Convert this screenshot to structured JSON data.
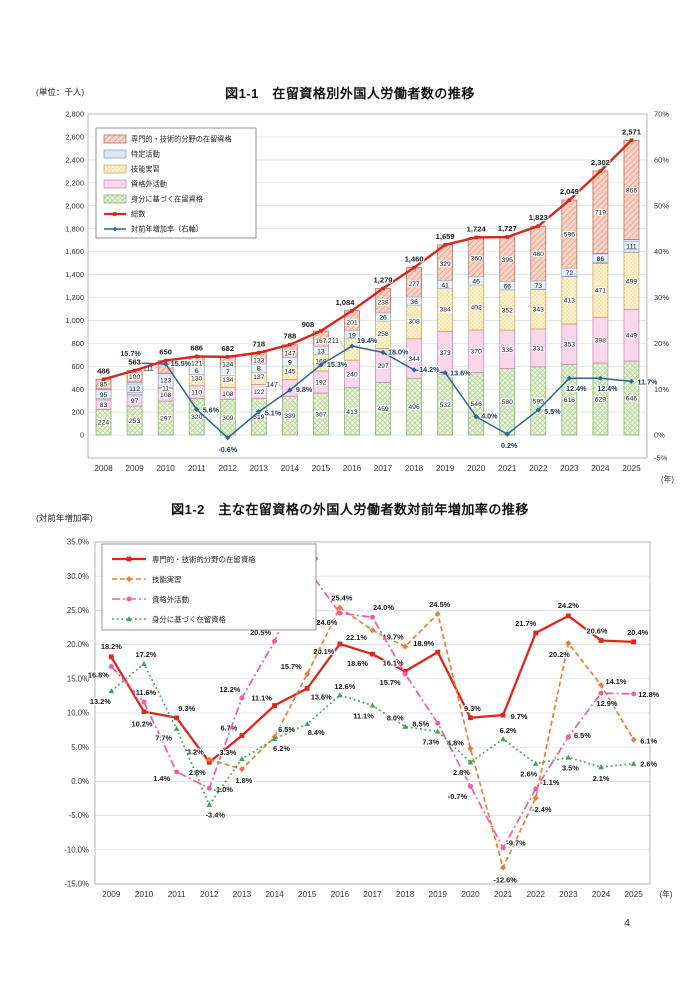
{
  "page_number": "4",
  "chart_data": [
    {
      "type": "bar",
      "id": "fig1",
      "title": "図1-1　在留資格別外国人労働者数の推移",
      "unit_label": "(単位：千人)",
      "x_axis_suffix": "(年)",
      "years": [
        "2008",
        "2009",
        "2010",
        "2011",
        "2012",
        "2013",
        "2014",
        "2015",
        "2016",
        "2017",
        "2018",
        "2019",
        "2020",
        "2021",
        "2022",
        "2023",
        "2024",
        "2025"
      ],
      "left_axis": {
        "min": -200,
        "max": 2800,
        "step": 200,
        "tick_labels": [
          "0",
          "200",
          "400",
          "600",
          "800",
          "1,000",
          "1,200",
          "1,400",
          "1,600",
          "1,800",
          "2,000",
          "2,200",
          "2,400",
          "2,600",
          "2,800"
        ]
      },
      "right_axis": {
        "min": -5,
        "max": 70,
        "tick_labels": [
          "70%",
          "60%",
          "50%",
          "40%",
          "30%",
          "20%",
          "10%",
          "0%",
          "-5%"
        ],
        "tick_values": [
          70,
          60,
          50,
          40,
          30,
          20,
          10,
          0,
          -5
        ]
      },
      "stack_note": "series listed top-to-bottom as stacked",
      "series": [
        {
          "name": "専門的・技術的分野の在留資格",
          "key": "senmon",
          "values": [
            85,
            100,
            111,
            121,
            124,
            133,
            147,
            167,
            201,
            238,
            277,
            329,
            360,
            395,
            480,
            596,
            719,
            866
          ]
        },
        {
          "name": "特定活動",
          "key": "tokutei",
          "values": [
            95,
            112,
            123,
            6,
            7,
            8,
            9,
            13,
            19,
            26,
            36,
            41,
            46,
            66,
            73,
            72,
            86,
            111
          ]
        },
        {
          "name": "技能実習",
          "key": "ginou",
          "values": [
            null,
            null,
            11,
            130,
            134,
            137,
            145,
            168,
            211,
            258,
            308,
            384,
            402,
            352,
            343,
            413,
            471,
            499
          ]
        },
        {
          "name": "資格外活動",
          "key": "shikakugai",
          "values": [
            83,
            97,
            108,
            110,
            108,
            122,
            147,
            192,
            240,
            297,
            344,
            373,
            370,
            335,
            331,
            353,
            398,
            449
          ]
        },
        {
          "name": "身分に基づく在留資格",
          "key": "mibun",
          "values": [
            224,
            253,
            297,
            320,
            309,
            319,
            339,
            367,
            413,
            459,
            496,
            532,
            546,
            580,
            595,
            616,
            629,
            646
          ]
        }
      ],
      "total_series": {
        "name": "総数",
        "values": [
          486,
          563,
          650,
          686,
          682,
          718,
          788,
          908,
          1084,
          1279,
          1460,
          1659,
          1724,
          1727,
          1823,
          2049,
          2302,
          2571
        ],
        "labels": [
          "486",
          "563",
          "650",
          "686",
          "682",
          "718",
          "788",
          "908",
          "1,084",
          "1,279",
          "1,460",
          "1,659",
          "1,724",
          "1,727",
          "1,823",
          "2,049",
          "2,302",
          "2,571"
        ]
      },
      "rate_series": {
        "name": "対前年増加率（右軸）",
        "values": [
          null,
          15.7,
          15.5,
          5.6,
          -0.6,
          5.1,
          9.8,
          15.3,
          19.4,
          18.0,
          14.2,
          13.6,
          4.0,
          0.2,
          5.5,
          12.4,
          12.4,
          11.7
        ],
        "labels": [
          "",
          "15.7%",
          "15.5%",
          "5.6%",
          "-0.6%",
          "5.1%",
          "9.8%",
          "15.3%",
          "19.4%",
          "18.0%",
          "14.2%",
          "13.6%",
          "4.0%",
          "0.2%",
          "5.5%",
          "12.4%",
          "12.4%",
          "11.7%"
        ]
      },
      "legend": [
        {
          "label": "専門的・技術的分野の在留資格",
          "swatch": "senmon"
        },
        {
          "label": "特定活動",
          "swatch": "tokutei"
        },
        {
          "label": "技能実習",
          "swatch": "ginou"
        },
        {
          "label": "資格外活動",
          "swatch": "shikakugai"
        },
        {
          "label": "身分に基づく在留資格",
          "swatch": "mibun"
        },
        {
          "label": "総数",
          "swatch": "line-total"
        },
        {
          "label": "対前年増加率（右軸）",
          "swatch": "line-rate"
        }
      ],
      "colors": {
        "total_line": "#d9261c",
        "rate_line": "#2e6496",
        "label_text": "#222222",
        "senmon_fill": "#f8d3c5",
        "senmon_hatch": "#de8e7a",
        "senmon_border": "#b85c50",
        "tokutei_fill": "#dce6f2",
        "tokutei_border": "#7f9db9",
        "ginou_fill": "#fdf2cd",
        "ginou_dot": "#d8b44c",
        "ginou_border": "#c3a04a",
        "shikakugai_fill": "#f9d7eb",
        "shikakugai_border": "#cf7fb4",
        "mibun_fill": "#edf5e1",
        "mibun_hatch": "#b6d79a",
        "mibun_border": "#7ca861"
      }
    },
    {
      "type": "line",
      "id": "fig2",
      "title": "図1-2　主な在留資格の外国人労働者数対前年増加率の推移",
      "axis_label": "(対前年増加率)",
      "x_axis_suffix": "(年)",
      "years": [
        "2009",
        "2010",
        "2011",
        "2012",
        "2013",
        "2014",
        "2015",
        "2016",
        "2017",
        "2018",
        "2019",
        "2020",
        "2021",
        "2022",
        "2023",
        "2024",
        "2025"
      ],
      "ylim": [
        -15,
        35
      ],
      "ystep": 5,
      "y_tick_labels": [
        "35.0%",
        "30.0%",
        "25.0%",
        "20.0%",
        "15.0%",
        "10.0%",
        "5.0%",
        "0.0%",
        "-5.0%",
        "-10.0%",
        "-15.0%"
      ],
      "series": [
        {
          "name": "専門的・技術的分野の在留資格",
          "color": "#e0261c",
          "style": "solid",
          "marker": "square",
          "values": [
            18.2,
            10.2,
            9.3,
            2.8,
            6.7,
            11.1,
            13.6,
            20.1,
            18.6,
            16.1,
            18.9,
            9.3,
            9.7,
            21.7,
            24.2,
            20.6,
            20.4
          ],
          "labels": [
            "18.2%",
            "10.2%",
            "9.3%",
            "2.8%",
            "6.7%",
            "11.1%",
            "13.6%",
            "20.1%",
            "18.6%",
            "16.1%",
            "18.9%",
            "9.3%",
            "9.7%",
            "21.7%",
            "24.2%",
            "20.6%",
            "20.4%"
          ]
        },
        {
          "name": "技能実習",
          "color": "#ed7d31",
          "style": "dashed",
          "marker": "diamond",
          "values": [
            null,
            null,
            null,
            3.2,
            1.8,
            6.5,
            15.7,
            25.4,
            22.1,
            19.7,
            24.5,
            4.8,
            -12.6,
            -2.4,
            20.2,
            14.1,
            6.1
          ],
          "labels": [
            "",
            "",
            "",
            "3.2%",
            "1.8%",
            "6.5%",
            "15.7%",
            "25.4%",
            "22.1%",
            "19.7%",
            "24.5%",
            "4.8%",
            "-12.6%",
            "-2.4%",
            "20.2%",
            "14.1%",
            "6.1%"
          ]
        },
        {
          "name": "資格外活動",
          "color": "#f25ca2",
          "style": "dashdot",
          "marker": "circle",
          "values": [
            16.8,
            11.6,
            1.4,
            -1.0,
            12.2,
            20.5,
            31.1,
            24.6,
            24.0,
            15.7,
            8.5,
            -0.7,
            -9.7,
            -1.1,
            6.5,
            12.9,
            12.8
          ],
          "labels": [
            "16.8%",
            "11.6%",
            "1.4%",
            "-1.0%",
            "12.2%",
            "20.5%",
            "31.1%",
            "24.6%",
            "24.0%",
            "15.7%",
            "8.5%",
            "-0.7%",
            "-9.7%",
            "-1.1%",
            "6.5%",
            "12.9%",
            "12.8%"
          ]
        },
        {
          "name": "身分に基づく在留資格",
          "color": "#3aa65a",
          "style": "dotted",
          "marker": "triangle",
          "values": [
            13.2,
            17.2,
            7.7,
            -3.4,
            3.3,
            6.2,
            8.4,
            12.6,
            11.1,
            8.0,
            7.3,
            2.8,
            6.2,
            2.6,
            3.5,
            2.1,
            2.6
          ],
          "labels": [
            "13.2%",
            "17.2%",
            "7.7%",
            "-3.4%",
            "3.3%",
            "6.2%",
            "8.4%",
            "12.6%",
            "11.1%",
            "8.0%",
            "7.3%",
            "2.8%",
            "6.2%",
            "2.6%",
            "3.5%",
            "2.1%",
            "2.6%"
          ]
        }
      ]
    }
  ]
}
